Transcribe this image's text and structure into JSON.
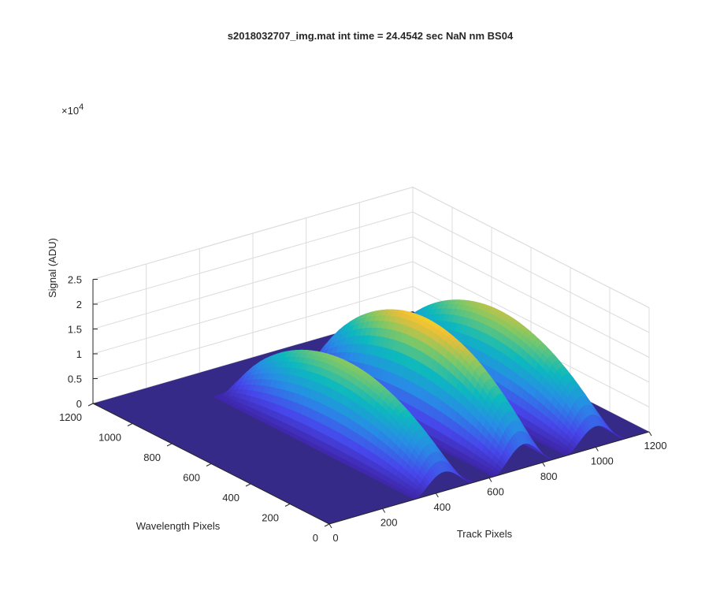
{
  "chart_data": {
    "type": "surface",
    "title": "s2018032707_img.mat int time = 24.4542 sec  NaN nm BS04",
    "xlabel": "Track Pixels",
    "ylabel": "Wavelength Pixels",
    "zlabel": "Signal (ADU)",
    "z_exponent_base": "×10",
    "z_exponent_power": "4",
    "xlim": [
      0,
      1200
    ],
    "ylim": [
      0,
      1200
    ],
    "zlim": [
      0,
      25000
    ],
    "x_ticks": [
      "0",
      "200",
      "400",
      "600",
      "800",
      "1000",
      "1200"
    ],
    "y_ticks": [
      "0",
      "200",
      "400",
      "600",
      "800",
      "1000",
      "1200"
    ],
    "z_ticks": [
      "0",
      "0.5",
      "1",
      "1.5",
      "2",
      "2.5"
    ],
    "x_tick_values": [
      0,
      200,
      400,
      600,
      800,
      1000,
      1200
    ],
    "y_tick_values": [
      0,
      200,
      400,
      600,
      800,
      1000,
      1200
    ],
    "z_tick_values": [
      0,
      0.5,
      1,
      1.5,
      2,
      2.5
    ],
    "grid": true,
    "colormap": "parula",
    "series": [
      {
        "name": "",
        "track_center": 430,
        "track_halfwidth": 110,
        "peak": 16000,
        "wavelength_range": [
          0,
          1000
        ]
      },
      {
        "name": "",
        "track_center": 730,
        "track_halfwidth": 110,
        "peak": 20000,
        "wavelength_range": [
          0,
          1000
        ]
      },
      {
        "name": "",
        "track_center": 1000,
        "track_halfwidth": 110,
        "peak": 17500,
        "wavelength_range": [
          0,
          1000
        ]
      }
    ]
  }
}
